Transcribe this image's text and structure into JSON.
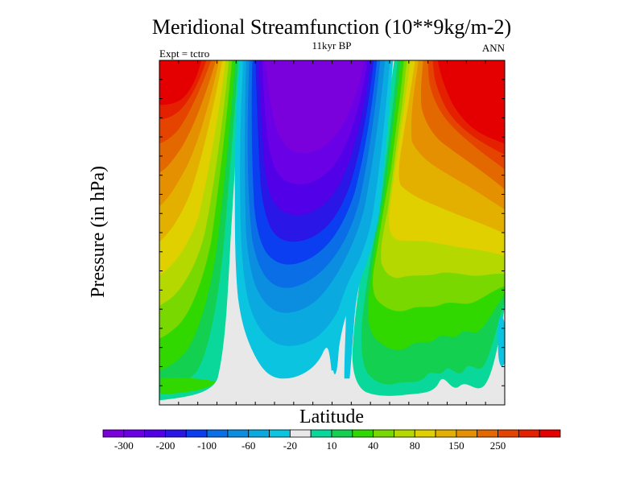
{
  "chart_data": {
    "type": "contour",
    "title": "Meridional Streamfunction (10**9kg/m-2)",
    "subtitle_left": "Expt = tctro",
    "subtitle_center": "11kyr BP",
    "subtitle_right": "ANN",
    "xlabel": "Latitude",
    "ylabel": "Pressure (in hPa)",
    "colorbar": {
      "colors": [
        "#7a00dc",
        "#6a00e6",
        "#5200e8",
        "#2a16e6",
        "#0a3ef0",
        "#0a6ee6",
        "#0b8ee0",
        "#0aaae0",
        "#0ac4e0",
        "#e8e8e8",
        "#0ad89a",
        "#14d050",
        "#30d800",
        "#78d800",
        "#b4d800",
        "#e0d000",
        "#e4b000",
        "#e49000",
        "#e46800",
        "#e44400",
        "#e42000",
        "#e40000"
      ],
      "tick_labels": [
        "-300",
        "-200",
        "-100",
        "-60",
        "-20",
        "10",
        "40",
        "80",
        "150",
        "250"
      ]
    },
    "regions": [
      {
        "name": "southern-cell",
        "polarity": "positive",
        "max_value_bin": 250
      },
      {
        "name": "tropical-cell",
        "polarity": "negative",
        "min_value_bin": -300
      },
      {
        "name": "northern-cell",
        "polarity": "positive",
        "max_value_bin": 250
      },
      {
        "name": "near-zero",
        "polarity": "neutral",
        "value_bin": 10
      }
    ]
  }
}
